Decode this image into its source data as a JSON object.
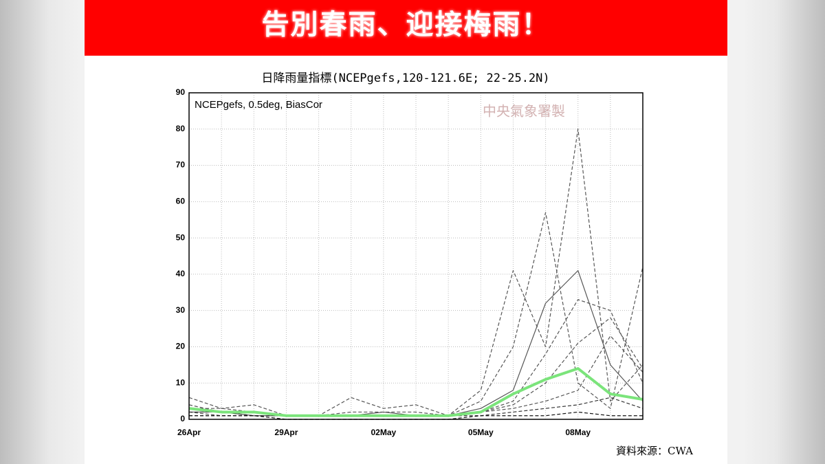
{
  "banner": {
    "title": "告別春雨、迎接梅雨！"
  },
  "chart_data": {
    "type": "line",
    "title": "日降雨量指標(NCEPgefs,120-121.6E; 22-25.2N)",
    "annotation": "NCEPgefs, 0.5deg, BiasCor",
    "watermark": "中央氣象署製",
    "source": "資料來源：CWA",
    "categories": [
      "26Apr",
      null,
      null,
      "29Apr",
      null,
      null,
      "02May",
      null,
      null,
      "05May",
      null,
      null,
      "08May",
      null,
      null
    ],
    "ylim": [
      0,
      90
    ],
    "yticks": [
      0,
      10,
      20,
      30,
      40,
      50,
      60,
      70,
      80,
      90
    ],
    "grid": true,
    "series": [
      {
        "color": "#555555",
        "dashed": true,
        "values": [
          6,
          3,
          4,
          1,
          1,
          6,
          3,
          4,
          1,
          8,
          41,
          20,
          80,
          5,
          15
        ]
      },
      {
        "color": "#555555",
        "dashed": true,
        "values": [
          4,
          2,
          2,
          1,
          1,
          2,
          2,
          2,
          1,
          5,
          20,
          57,
          10,
          3,
          42
        ]
      },
      {
        "color": "#555555",
        "dashed": false,
        "values": [
          2,
          2,
          1,
          1,
          1,
          1,
          2,
          1,
          1,
          3,
          8,
          32,
          41,
          15,
          5
        ]
      },
      {
        "color": "#555555",
        "dashed": true,
        "values": [
          3,
          3,
          2,
          1,
          1,
          1,
          1,
          1,
          1,
          2,
          5,
          18,
          33,
          30,
          10
        ]
      },
      {
        "color": "#555555",
        "dashed": true,
        "values": [
          2,
          1,
          1,
          1,
          1,
          1,
          1,
          1,
          1,
          2,
          4,
          10,
          21,
          28,
          14
        ]
      },
      {
        "color": "#555555",
        "dashed": true,
        "values": [
          1,
          1,
          1,
          1,
          1,
          1,
          1,
          1,
          1,
          2,
          3,
          5,
          8,
          23,
          13
        ]
      },
      {
        "color": "#333333",
        "dashed": true,
        "values": [
          2,
          2,
          1,
          1,
          1,
          1,
          1,
          1,
          1,
          1,
          2,
          3,
          4,
          6,
          3
        ]
      },
      {
        "color": "#111111",
        "dashed": true,
        "values": [
          1,
          1,
          1,
          0,
          0,
          0,
          0,
          0,
          0,
          1,
          1,
          1,
          2,
          1,
          1
        ]
      },
      {
        "color": "#7be47b",
        "dashed": false,
        "width": 4,
        "values": [
          3,
          2,
          2,
          1,
          1,
          1,
          1,
          1,
          1,
          2,
          7,
          11,
          14,
          7,
          5.5
        ]
      }
    ]
  }
}
